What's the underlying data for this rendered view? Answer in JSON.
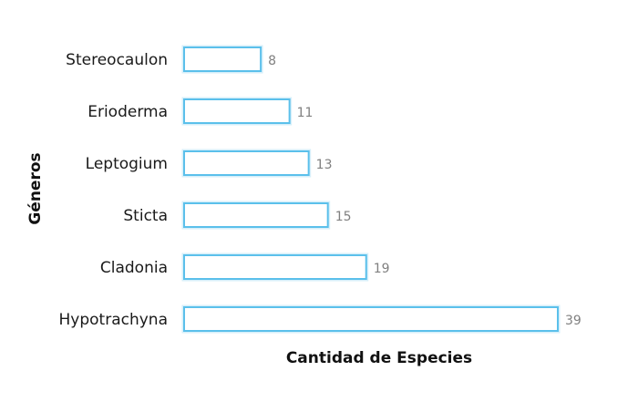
{
  "chart_data": {
    "type": "bar",
    "orientation": "horizontal",
    "categories": [
      "Stereocaulon",
      "Erioderma",
      "Leptogium",
      "Sticta",
      "Cladonia",
      "Hypotrachyna"
    ],
    "values": [
      8,
      11,
      13,
      15,
      19,
      39
    ],
    "xlabel": "Cantidad de Especies",
    "ylabel": "Géneros",
    "xlim": [
      0,
      39
    ],
    "grid": false,
    "legend": "none",
    "bar_stroke_color": "#5bc0eb",
    "bar_fill_color": "#ffffff",
    "value_label_color": "#808080"
  }
}
